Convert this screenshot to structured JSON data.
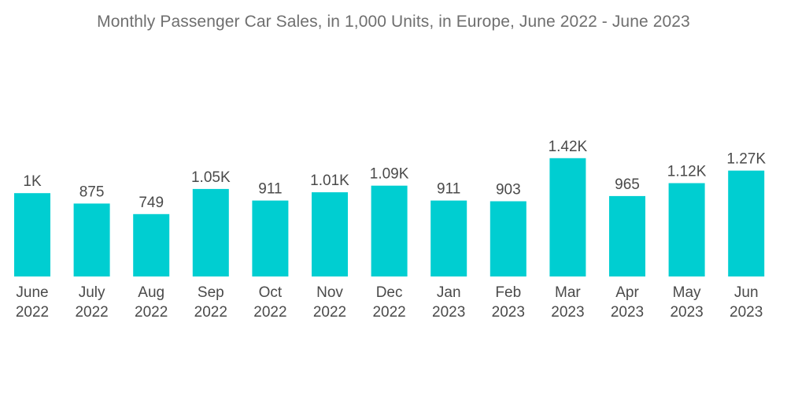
{
  "chart_data": {
    "type": "bar",
    "title": "Monthly Passenger Car Sales, in 1,000 Units, in Europe, June 2022 - June 2023",
    "xlabel": "",
    "ylabel": "",
    "ylim": [
      0,
      1500
    ],
    "grid": false,
    "legend": "none",
    "bar_color": "#00ced1",
    "categories": [
      [
        "June",
        "2022"
      ],
      [
        "July",
        "2022"
      ],
      [
        "Aug",
        "2022"
      ],
      [
        "Sep",
        "2022"
      ],
      [
        "Oct",
        "2022"
      ],
      [
        "Nov",
        "2022"
      ],
      [
        "Dec",
        "2022"
      ],
      [
        "Jan",
        "2023"
      ],
      [
        "Feb",
        "2023"
      ],
      [
        "Mar",
        "2023"
      ],
      [
        "Apr",
        "2023"
      ],
      [
        "May",
        "2023"
      ],
      [
        "Jun",
        "2023"
      ]
    ],
    "values": [
      1000,
      875,
      749,
      1050,
      911,
      1010,
      1090,
      911,
      903,
      1420,
      965,
      1120,
      1270
    ],
    "data_labels": [
      "1K",
      "875",
      "749",
      "1.05K",
      "911",
      "1.01K",
      "1.09K",
      "911",
      "903",
      "1.42K",
      "965",
      "1.12K",
      "1.27K"
    ]
  }
}
